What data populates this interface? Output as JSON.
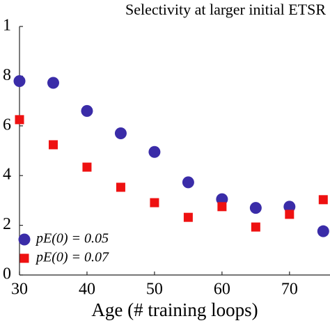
{
  "chart_data": {
    "type": "scatter",
    "title": "Selectivity at larger initial ETSR",
    "xlabel": "Age (# training loops)",
    "x": [
      30,
      35,
      40,
      45,
      50,
      55,
      60,
      65,
      70,
      75
    ],
    "series": [
      {
        "name": "pE(0) = 0.05",
        "color": "#3a2ca8",
        "marker": "circle",
        "values": [
          0.78,
          0.773,
          0.66,
          0.57,
          0.495,
          0.373,
          0.305,
          0.27,
          0.275,
          0.176
        ]
      },
      {
        "name": "pE(0) = 0.07",
        "color": "#ee1111",
        "marker": "square",
        "values": [
          0.625,
          0.524,
          0.434,
          0.353,
          0.291,
          0.232,
          0.275,
          0.193,
          0.244,
          0.303
        ]
      }
    ],
    "xlim": [
      30,
      76
    ],
    "xticks": [
      30,
      40,
      50,
      60,
      70
    ],
    "ylim": [
      0,
      1
    ],
    "yticks": [
      0,
      {
        "value": 0.2,
        "label": "2"
      },
      {
        "value": 0.4,
        "label": "4"
      },
      {
        "value": 0.6,
        "label": "6"
      },
      {
        "value": 0.8,
        "label": "8"
      },
      1
    ],
    "legend": "lower left"
  }
}
